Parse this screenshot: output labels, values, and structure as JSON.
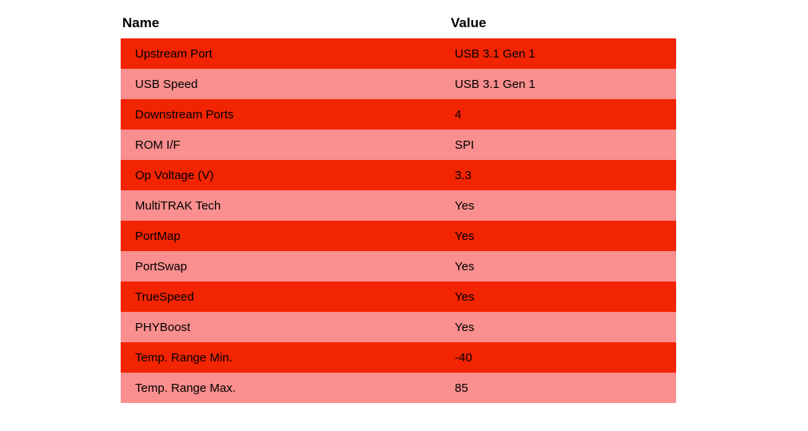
{
  "colors": {
    "row_stripe_bright": "#f32401",
    "row_stripe_light": "#f98f8e",
    "text": "#000000",
    "background": "#ffffff"
  },
  "chart_data": {
    "type": "table",
    "title": "",
    "columns": [
      "Name",
      "Value"
    ],
    "rows": [
      [
        "Upstream Port",
        "USB 3.1 Gen 1"
      ],
      [
        "USB Speed",
        "USB 3.1 Gen 1"
      ],
      [
        "Downstream Ports",
        "4"
      ],
      [
        "ROM I/F",
        "SPI"
      ],
      [
        "Op Voltage (V)",
        "3.3"
      ],
      [
        "MultiTRAK Tech",
        "Yes"
      ],
      [
        "PortMap",
        "Yes"
      ],
      [
        "PortSwap",
        "Yes"
      ],
      [
        "TrueSpeed",
        "Yes"
      ],
      [
        "PHYBoost",
        "Yes"
      ],
      [
        "Temp. Range Min.",
        "-40"
      ],
      [
        "Temp. Range Max.",
        "85"
      ]
    ],
    "layout_hints": {
      "striped": true,
      "stripe_order": [
        "bright_red",
        "light_red"
      ],
      "header_background": "white",
      "grid": false
    }
  }
}
